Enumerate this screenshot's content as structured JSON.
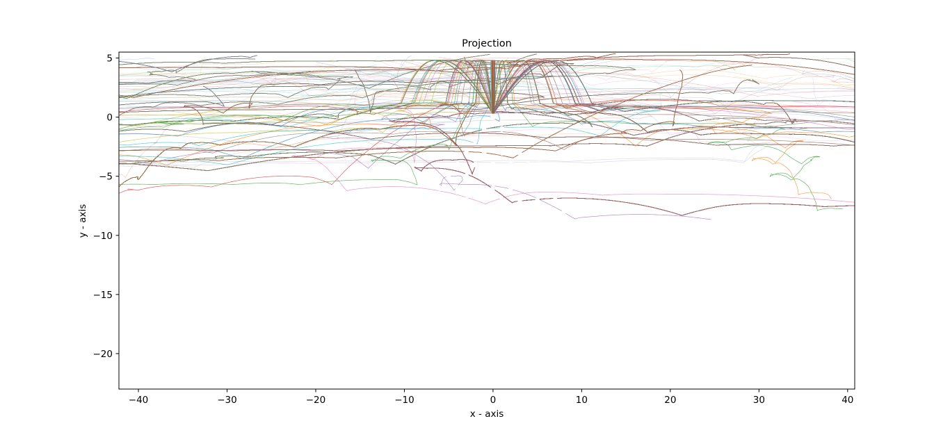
{
  "chart_data": {
    "type": "line",
    "title": "Projection",
    "xlabel": "x - axis",
    "ylabel": "y - axis",
    "xlim": [
      -42.2,
      40.8
    ],
    "ylim": [
      -23.0,
      5.5
    ],
    "xticks": [
      -40,
      -30,
      -20,
      -10,
      0,
      10,
      20,
      30,
      40
    ],
    "yticks": [
      5,
      0,
      -5,
      -10,
      -15,
      -20
    ],
    "xtick_labels": [
      "−40",
      "−30",
      "−20",
      "−10",
      "0",
      "10",
      "20",
      "30",
      "40"
    ],
    "ytick_labels": [
      "5",
      "0",
      "−5",
      "−10",
      "−15",
      "−20"
    ],
    "grid": false,
    "legend": "none",
    "launch_point": [
      0,
      0.3
    ],
    "apex_height": 4.8,
    "peg_grid": {
      "first_row_y": 0,
      "row_spacing": 1,
      "peg_spacing": 2,
      "half_width": 30
    },
    "series_colors": [
      "#1f77b4",
      "#ff7f0e",
      "#2ca02c",
      "#d62728",
      "#9467bd",
      "#8c564b",
      "#e377c2",
      "#7f7f7f",
      "#bcbd22",
      "#17becf"
    ]
  }
}
